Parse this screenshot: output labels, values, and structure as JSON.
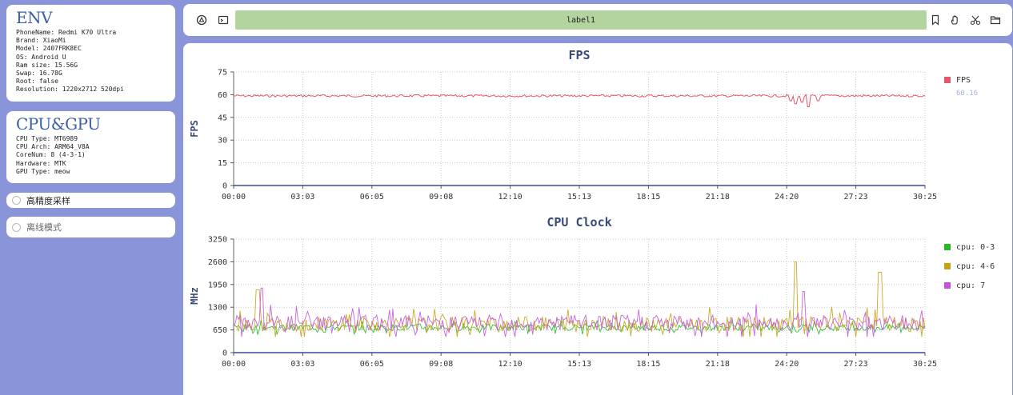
{
  "env": {
    "title": "ENV",
    "lines": [
      "PhoneName: Redmi K70 Ultra",
      "Brand: XiaoMi",
      "Model: 2407FRK8EC",
      "OS: Android U",
      "Ram size: 15.56G",
      "Swap: 16.78G",
      "Root: false",
      "Resolution: 1220x2712 520dpi"
    ]
  },
  "cpu_gpu": {
    "title": "CPU&GPU",
    "lines": [
      "CPU Type: MT6989",
      "CPU Arch: ARM64_V8A",
      "CoreNum: 8 (4-3-1)",
      "Hardware: MTK",
      "GPU Type: meow"
    ]
  },
  "options": {
    "high_precision": "高精度采样",
    "offline_mode": "离线模式"
  },
  "toolbar": {
    "label": "label1",
    "icons": [
      "record-icon",
      "terminal-icon",
      "bookmark-icon",
      "hand-icon",
      "scissors-icon",
      "folder-icon"
    ]
  },
  "chart_data": [
    {
      "type": "line",
      "title": "FPS",
      "ylabel": "FPS",
      "ylim": [
        0,
        75
      ],
      "yticks": [
        0,
        15,
        30,
        45,
        60,
        75
      ],
      "xticks": [
        "00:00",
        "03:03",
        "06:05",
        "09:08",
        "12:10",
        "15:13",
        "18:15",
        "21:18",
        "24:20",
        "27:23",
        "30:25"
      ],
      "grid": true,
      "legend_position": "right",
      "series": [
        {
          "name": "FPS",
          "color": "#e0586a",
          "legend_value": "60.16",
          "baseline": 60,
          "dips": [
            {
              "t": 0.805,
              "v": 56
            },
            {
              "t": 0.812,
              "v": 54
            },
            {
              "t": 0.823,
              "v": 55
            },
            {
              "t": 0.832,
              "v": 52
            },
            {
              "t": 0.845,
              "v": 56
            }
          ]
        }
      ]
    },
    {
      "type": "line",
      "title": "CPU Clock",
      "ylabel": "MHz",
      "ylim": [
        0,
        3250
      ],
      "yticks": [
        0,
        650,
        1300,
        1950,
        2600,
        3250
      ],
      "xticks": [
        "00:00",
        "03:03",
        "06:05",
        "09:08",
        "12:10",
        "15:13",
        "18:15",
        "21:18",
        "24:20",
        "27:23",
        "30:25"
      ],
      "grid": true,
      "legend_position": "right",
      "series": [
        {
          "name": "cpu: 0-3",
          "color": "#22bb22",
          "base": 720,
          "amp": 160
        },
        {
          "name": "cpu: 4-6",
          "color": "#c7a012",
          "base": 820,
          "amp": 380,
          "spikes": [
            {
              "t": 0.812,
              "v": 2600
            },
            {
              "t": 0.935,
              "v": 2300
            },
            {
              "t": 0.035,
              "v": 1800
            }
          ]
        },
        {
          "name": "cpu: 7",
          "color": "#c353dd",
          "base": 850,
          "amp": 420,
          "spikes": [
            {
              "t": 0.04,
              "v": 1850
            },
            {
              "t": 0.825,
              "v": 1750
            }
          ]
        }
      ]
    }
  ]
}
